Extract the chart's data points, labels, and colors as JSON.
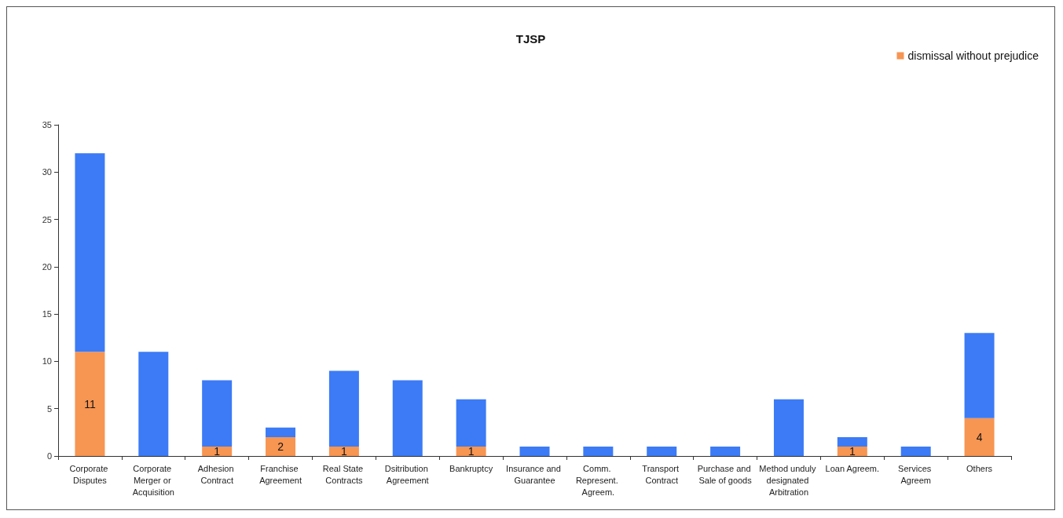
{
  "chart_data": {
    "type": "bar",
    "title": "TJSP",
    "stacked": true,
    "categories": [
      "Corporate Disputes",
      "Corporate Merger or Acquisition",
      "Adhesion Contract",
      "Franchise Agreement",
      "Real State Contracts",
      "Dsitribution Agreement",
      "Bankruptcy",
      "Insurance and Guarantee",
      "Comm. Represent. Agreem.",
      "Transport Contract",
      "Purchase and Sale of goods",
      "Method unduly designated Arbitration",
      "Loan Agreem.",
      "Services Agreem",
      "Others"
    ],
    "series": [
      {
        "name": "dismissal without prejudice",
        "color": "#f79552",
        "values": [
          11,
          0,
          1,
          2,
          1,
          0,
          1,
          0,
          0,
          0,
          0,
          0,
          1,
          0,
          4
        ],
        "value_labels": [
          "11",
          null,
          "1",
          "2",
          "1",
          null,
          "1",
          null,
          null,
          null,
          null,
          null,
          "1",
          null,
          "4"
        ]
      },
      {
        "color": "#3c7bf5",
        "values": [
          21,
          11,
          7,
          1,
          8,
          8,
          5,
          1,
          1,
          1,
          1,
          6,
          1,
          1,
          9
        ]
      }
    ],
    "ylim": [
      0,
      35
    ],
    "yticks": [
      0,
      5,
      10,
      15,
      20,
      25,
      30,
      35
    ],
    "grid": false,
    "legend": "top right"
  }
}
